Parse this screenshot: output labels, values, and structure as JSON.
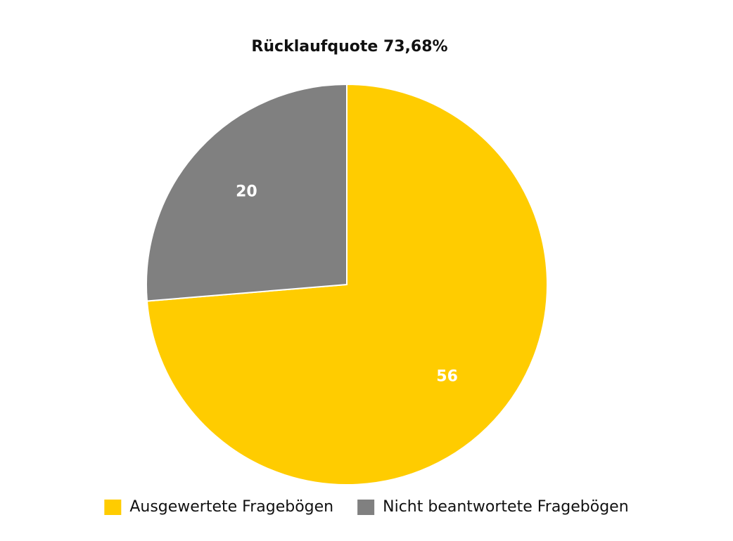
{
  "chart_data": {
    "type": "pie",
    "title": "Rücklaufquote 73,68%",
    "categories": [
      "Ausgewertete Fragebögen",
      "Nicht beantwortete Fragebögen"
    ],
    "values": [
      56,
      20
    ],
    "colors": [
      "#ffcc00",
      "#808080"
    ],
    "legend": "bottom"
  }
}
